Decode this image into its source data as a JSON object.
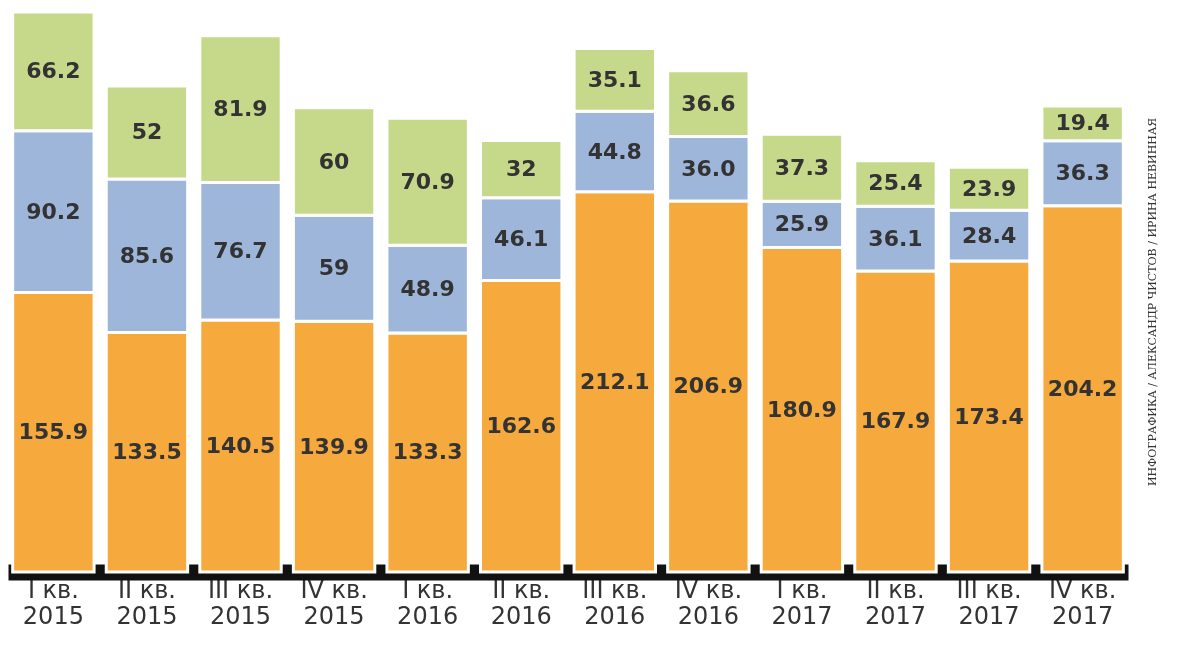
{
  "chart_data": {
    "type": "bar",
    "stacked": true,
    "data_labels": true,
    "legend": false,
    "grid": false,
    "categories": [
      "I кв.\n2015",
      "II кв.\n2015",
      "III кв.\n2015",
      "IV кв.\n2015",
      "I кв.\n2016",
      "II кв.\n2016",
      "III кв.\n2016",
      "IV кв.\n2016",
      "I кв.\n2017",
      "II кв.\n2017",
      "III кв.\n2017",
      "IV кв.\n2017"
    ],
    "series": [
      {
        "color": "#f6a93c",
        "values": [
          155.9,
          133.5,
          140.5,
          139.9,
          133.3,
          162.6,
          212.1,
          206.9,
          180.9,
          167.9,
          173.4,
          204.2
        ]
      },
      {
        "color": "#9db6d9",
        "values": [
          90.2,
          85.6,
          76.7,
          59,
          48.9,
          46.1,
          44.8,
          36.0,
          25.9,
          36.1,
          28.4,
          36.3
        ],
        "value_labels": [
          "90.2",
          "85.6",
          "76.7",
          "59",
          "48.9",
          "46.1",
          "44.8",
          "36.0",
          "25.9",
          "36.1",
          "28.4",
          "36.3"
        ]
      },
      {
        "color": "#c6d98b",
        "values": [
          66.2,
          52,
          81.9,
          60,
          70.9,
          32,
          35.1,
          36.6,
          37.3,
          25.4,
          23.9,
          19.4
        ]
      }
    ],
    "annotations": [
      "ИНФОГРАФИКА / АЛЕКСАНДР ЧИСТОВ / ИРИНА НЕВИННАЯ"
    ]
  }
}
